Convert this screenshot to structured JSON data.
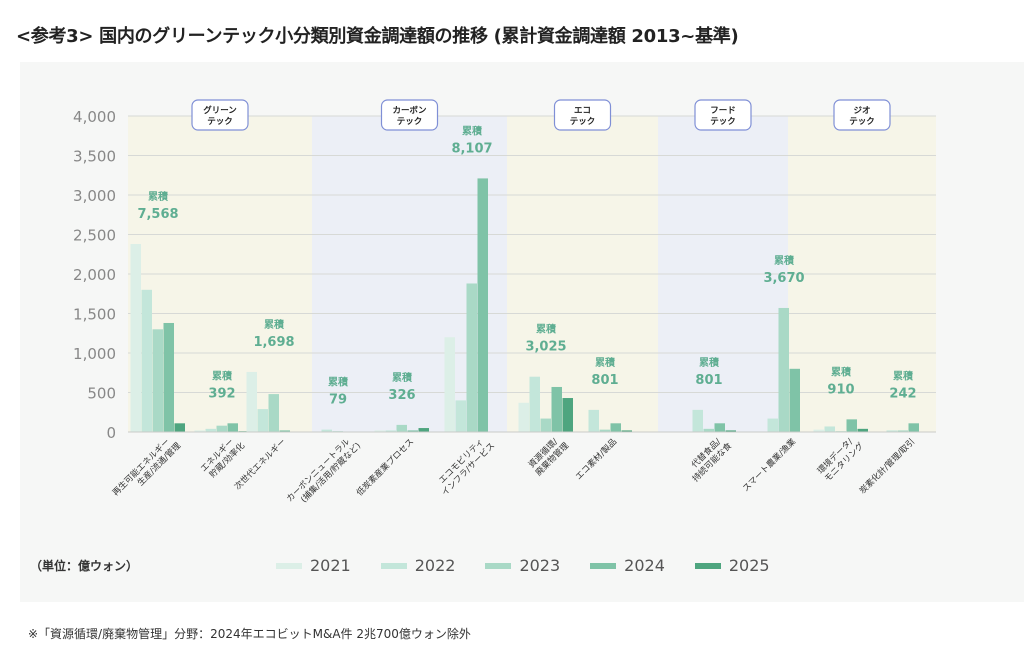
{
  "title": "<参考3> 国内のグリーンテック小分類別資金調達額の推移 (累計資金調達額 2013~基準)",
  "unit_label": "（単位：億ウォン）",
  "footnote": "※「資源循環/廃棄物管理」分野：2024年エコビットM&A件 2兆700億ウォン除外",
  "colors": {
    "series": [
      "#dcefe7",
      "#c3e6da",
      "#a9d9c6",
      "#7fc3a7",
      "#4ea57f"
    ],
    "band_warm": "#f6f5e8",
    "band_cool": "#eceff6",
    "accent": "#5fae92"
  },
  "chart_data": {
    "type": "bar",
    "ylim": [
      0,
      4000
    ],
    "yticks": [
      "0",
      "500",
      "1,000",
      "1,500",
      "2,000",
      "2,500",
      "3,000",
      "3,500",
      "4,000"
    ],
    "sections": [
      "グリーン\nテック",
      "カーボン\nテック",
      "エコ\nテック",
      "フード\nテック",
      "ジオ\nテック"
    ],
    "series_names": [
      "2021",
      "2022",
      "2023",
      "2024",
      "2025"
    ],
    "cumulative_label": "累積",
    "categories": [
      {
        "label": "再生可能エネルギー\n生産/流通/管理",
        "section": 0,
        "cumulative": "7,568",
        "values": [
          2380,
          1800,
          1300,
          1380,
          110
        ]
      },
      {
        "label": "エネルギー\n貯蔵/効率化",
        "section": 0,
        "cumulative": "392",
        "values": [
          20,
          40,
          80,
          110,
          10
        ]
      },
      {
        "label": "次世代エネルギー",
        "section": 0,
        "cumulative": "1,698",
        "values": [
          760,
          290,
          480,
          20,
          0
        ]
      },
      {
        "label": "カーボンニュートラル\n(捕集/活用/貯蔵など)",
        "section": 1,
        "cumulative": "79",
        "values": [
          0,
          30,
          10,
          0,
          0
        ]
      },
      {
        "label": "低炭素産業プロセス",
        "section": 1,
        "cumulative": "326",
        "values": [
          20,
          20,
          90,
          20,
          50
        ]
      },
      {
        "label": "エコモビリティ\nインフラ/サービス",
        "section": 1,
        "cumulative": "8,107",
        "values": [
          1200,
          400,
          1880,
          3210,
          0
        ]
      },
      {
        "label": "資源循環/\n廃棄物管理",
        "section": 2,
        "cumulative": "3,025",
        "values": [
          370,
          700,
          170,
          570,
          430
        ]
      },
      {
        "label": "エコ素材/製品",
        "section": 2,
        "cumulative": "801",
        "values": [
          0,
          280,
          30,
          110,
          20
        ]
      },
      {
        "label": "代替食品/\n持続可能な食",
        "section": 3,
        "cumulative": "801",
        "values": [
          0,
          280,
          40,
          110,
          20
        ]
      },
      {
        "label": "スマート農業/漁業",
        "section": 3,
        "cumulative": "3,670",
        "values": [
          0,
          170,
          1570,
          800,
          0
        ]
      },
      {
        "label": "環境データ/\nモニタリング",
        "section": 4,
        "cumulative": "910",
        "values": [
          30,
          70,
          10,
          160,
          40
        ]
      },
      {
        "label": "炭素化計/管理/取引",
        "section": 4,
        "cumulative": "242",
        "values": [
          0,
          20,
          20,
          110,
          0
        ]
      }
    ]
  }
}
